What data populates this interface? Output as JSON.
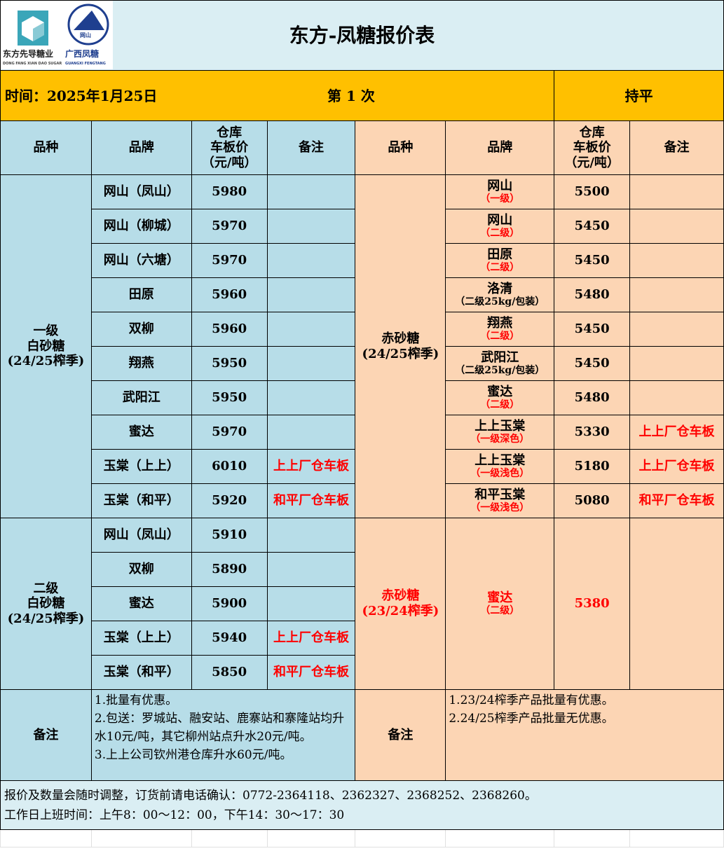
{
  "title": "东方-凤糖报价表",
  "logos": {
    "left_text": "东方先导糖业",
    "left_sub": "DONG FANG XIAN DAO SUGAR",
    "right_text": "广西凤糖",
    "right_sub": "GUANGXI FENGTANG",
    "badge": "网山 WANGSHAN"
  },
  "time": "时间：2025年1月25日",
  "round": "第 1 次",
  "trend": "持平",
  "headers": {
    "variety": "品种",
    "brand": "品牌",
    "price": "仓库\n车板价\n（元/吨）",
    "price_l1": "仓库",
    "price_l2": "车板价",
    "price_l3": "（元/吨）",
    "remark": "备注"
  },
  "left_group1": {
    "variety_l1": "一级",
    "variety_l2": "白砂糖",
    "variety_l3": "(24/25榨季)",
    "rows": [
      {
        "brand": "网山（凤山）",
        "price": "5980",
        "remark": ""
      },
      {
        "brand": "网山（柳城）",
        "price": "5970",
        "remark": ""
      },
      {
        "brand": "网山（六塘）",
        "price": "5970",
        "remark": ""
      },
      {
        "brand": "田原",
        "price": "5960",
        "remark": ""
      },
      {
        "brand": "双柳",
        "price": "5960",
        "remark": ""
      },
      {
        "brand": "翔燕",
        "price": "5950",
        "remark": ""
      },
      {
        "brand": "武阳江",
        "price": "5950",
        "remark": ""
      },
      {
        "brand": "蜜达",
        "price": "5970",
        "remark": ""
      },
      {
        "brand": "玉棠（上上）",
        "price": "6010",
        "remark": "上上厂仓车板"
      },
      {
        "brand": "玉棠（和平）",
        "price": "5920",
        "remark": "和平厂仓车板"
      }
    ]
  },
  "left_group2": {
    "variety_l1": "二级",
    "variety_l2": "白砂糖",
    "variety_l3": "(24/25榨季)",
    "rows": [
      {
        "brand": "网山（凤山）",
        "price": "5910",
        "remark": ""
      },
      {
        "brand": "双柳",
        "price": "5890",
        "remark": ""
      },
      {
        "brand": "蜜达",
        "price": "5900",
        "remark": ""
      },
      {
        "brand": "玉棠（上上）",
        "price": "5940",
        "remark": "上上厂仓车板"
      },
      {
        "brand": "玉棠（和平）",
        "price": "5850",
        "remark": "和平厂仓车板"
      }
    ]
  },
  "right_group1": {
    "variety_l1": "赤砂糖",
    "variety_l2": "(24/25榨季)",
    "rows": [
      {
        "brand": "网山",
        "grade": "（一级）",
        "price": "5500",
        "remark": ""
      },
      {
        "brand": "网山",
        "grade": "（二级）",
        "price": "5450",
        "remark": ""
      },
      {
        "brand": "田原",
        "grade": "（二级）",
        "price": "5450",
        "remark": ""
      },
      {
        "brand": "洛清",
        "grade": "（二级25kg/包装）",
        "price": "5480",
        "remark": ""
      },
      {
        "brand": "翔燕",
        "grade": "（二级）",
        "price": "5450",
        "remark": ""
      },
      {
        "brand": "武阳江",
        "grade": "（二级25kg/包装）",
        "price": "5450",
        "remark": ""
      },
      {
        "brand": "蜜达",
        "grade": "（二级）",
        "price": "5480",
        "remark": ""
      },
      {
        "brand": "上上玉棠",
        "grade": "（一级深色）",
        "price": "5330",
        "remark": "上上厂仓车板"
      },
      {
        "brand": "上上玉棠",
        "grade": "（一级浅色）",
        "price": "5180",
        "remark": "上上厂仓车板"
      },
      {
        "brand": "和平玉棠",
        "grade": "（一级浅色）",
        "price": "5080",
        "remark": "和平厂仓车板"
      }
    ]
  },
  "right_group2": {
    "variety_l1": "赤砂糖",
    "variety_l2": "(23/24榨季)",
    "brand": "蜜达",
    "grade": "（二级）",
    "price": "5380",
    "remark": ""
  },
  "notes": {
    "label": "备注",
    "left": [
      "1.批量有优惠。",
      "2.包送：罗城站、融安站、鹿寨站和寨隆站均升水10元/吨，其它柳州站点升水20元/吨。",
      "3.上上公司钦州港仓库升水60元/吨。"
    ],
    "right": [
      "1.23/24榨季产品批量有优惠。",
      "2.24/25榨季产品批量无优惠。"
    ]
  },
  "footer": {
    "line1": "报价及数量会随时调整，订货前请电话确认：0772-2364118、2362327、2368252、2368260。",
    "line2": "工作日上班时间：上午8：00～12：00，下午14：30～17：30"
  },
  "colors": {
    "blue": "#b7dde8",
    "orange": "#fcd5b4",
    "yellow": "#ffc000",
    "title_bg": "#daeef3",
    "red": "#ff0000"
  }
}
